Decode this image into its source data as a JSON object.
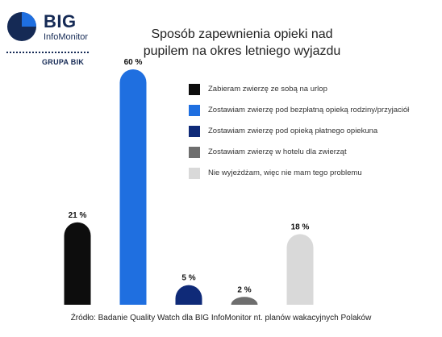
{
  "brand": {
    "name": "BIG",
    "subname": "InfoMonitor",
    "group": "GRUPA BIK",
    "logo_colors": [
      "#152a55",
      "#1f6fe0"
    ]
  },
  "chart_data": {
    "type": "bar",
    "title_lines": [
      "Sposób zapewnienia opieki nad",
      "pupilem na okres letniego wyjazdu"
    ],
    "unit": "%",
    "value_labels": [
      "21 %",
      "60 %",
      "5 %",
      "2 %",
      "18 %"
    ],
    "categories": [
      "Zabieram zwierzę ze sobą na urlop",
      "Zostawiam zwierzę pod bezpłatną opieką rodziny/przyjaciół",
      "Zostawiam zwierzę pod opieką płatnego opiekuna",
      "Zostawiam zwierzę w hotelu dla zwierząt",
      "Nie wyjeżdżam, więc nie mam tego problemu"
    ],
    "values": [
      21,
      60,
      5,
      2,
      18
    ],
    "colors": [
      "#0d0d0d",
      "#1f6fe0",
      "#0f2a78",
      "#6e6e6e",
      "#d9d9d9"
    ],
    "ylim": [
      0,
      60
    ],
    "legend_position": "top-right",
    "grid": false
  },
  "footer": {
    "source": "Źródło: Badanie Quality Watch dla BIG InfoMonitor nt. planów wakacyjnych Polaków"
  }
}
